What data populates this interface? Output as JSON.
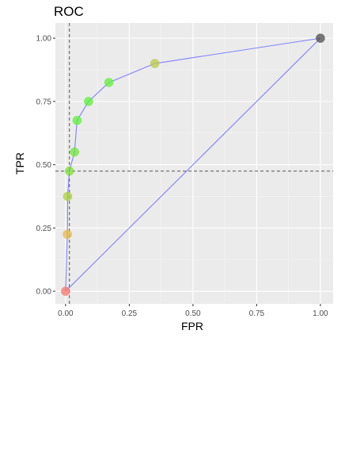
{
  "chart_data": {
    "type": "scatter",
    "title": "ROC",
    "xlabel": "FPR",
    "ylabel": "TPR",
    "xlim": [
      -0.04,
      1.05
    ],
    "ylim": [
      -0.05,
      1.06
    ],
    "x_ticks": [
      {
        "value": 0.0,
        "label": "0.00"
      },
      {
        "value": 0.25,
        "label": "0.25"
      },
      {
        "value": 0.5,
        "label": "0.50"
      },
      {
        "value": 0.75,
        "label": "0.75"
      },
      {
        "value": 1.0,
        "label": "1.00"
      }
    ],
    "y_ticks": [
      {
        "value": 0.0,
        "label": "0.00"
      },
      {
        "value": 0.25,
        "label": "0.25"
      },
      {
        "value": 0.5,
        "label": "0.50"
      },
      {
        "value": 0.75,
        "label": "0.75"
      },
      {
        "value": 1.0,
        "label": "1.00"
      }
    ],
    "grid": true,
    "panel_background": "#ebebeb",
    "roc_line_color": "#8080ff",
    "threshold_lines": {
      "x": 0.015,
      "y": 0.475,
      "style": "dashed",
      "color": "#555555"
    },
    "diagonal": {
      "x": [
        0.0,
        1.0
      ],
      "y": [
        0.0,
        1.0
      ],
      "color": "#8080ff"
    },
    "points": [
      {
        "x": 0.0,
        "y": 0.0,
        "color": "#f8766d"
      },
      {
        "x": 0.007,
        "y": 0.225,
        "color": "#e6b84a"
      },
      {
        "x": 0.008,
        "y": 0.375,
        "color": "#a8cf3c"
      },
      {
        "x": 0.015,
        "y": 0.475,
        "color": "#7fe03a"
      },
      {
        "x": 0.035,
        "y": 0.55,
        "color": "#6ee83a"
      },
      {
        "x": 0.045,
        "y": 0.675,
        "color": "#5ef03a"
      },
      {
        "x": 0.09,
        "y": 0.75,
        "color": "#5ef03a"
      },
      {
        "x": 0.17,
        "y": 0.825,
        "color": "#66ee3e"
      },
      {
        "x": 0.35,
        "y": 0.9,
        "color": "#b9c94a"
      },
      {
        "x": 1.0,
        "y": 1.0,
        "color": "#4d4d4d"
      }
    ]
  }
}
